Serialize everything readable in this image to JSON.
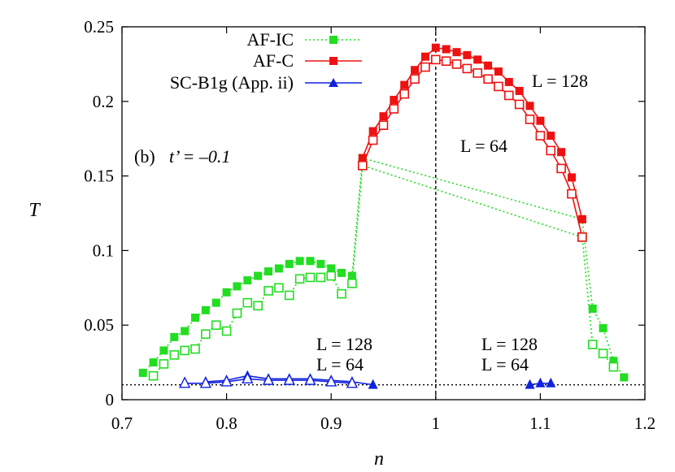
{
  "chart_data": {
    "type": "line",
    "xlabel": "n",
    "ylabel": "T",
    "xlim": [
      0.7,
      1.2
    ],
    "ylim": [
      0,
      0.25
    ],
    "xticks": [
      "0.7",
      "0.8",
      "0.9",
      "1",
      "1.1",
      "1.2"
    ],
    "yticks": [
      "0",
      "0.05",
      "0.1",
      "0.15",
      "0.2",
      "0.25"
    ],
    "panel_label": "(b)",
    "param_label": "t’ = –0.1",
    "size_labels": [
      "L = 128",
      "L = 64",
      "L = 128",
      "L = 64",
      "L = 128",
      "L = 64"
    ],
    "reference_lines": {
      "vertical_x": 1.0,
      "horizontal_y": 0.01
    },
    "legend": {
      "position": "top-left",
      "entries": [
        "AF-IC",
        "AF-C",
        "SC-B1g (App. ii)"
      ]
    },
    "colors": {
      "af_ic": "#22dd22",
      "af_c": "#ee1111",
      "sc_b1g": "#1122dd"
    },
    "series": [
      {
        "name": "AF-IC",
        "size": "L = 128",
        "marker": "filled-square",
        "line": "dotted",
        "color": "#22dd22",
        "x": [
          0.72,
          0.73,
          0.74,
          0.75,
          0.76,
          0.77,
          0.78,
          0.79,
          0.8,
          0.81,
          0.82,
          0.83,
          0.84,
          0.85,
          0.86,
          0.87,
          0.88,
          0.89,
          0.9,
          0.91,
          0.92,
          0.93,
          1.14,
          1.15,
          1.16,
          1.17,
          1.18
        ],
        "y": [
          0.018,
          0.025,
          0.033,
          0.042,
          0.046,
          0.055,
          0.06,
          0.065,
          0.072,
          0.076,
          0.08,
          0.083,
          0.086,
          0.088,
          0.091,
          0.093,
          0.093,
          0.091,
          0.088,
          0.085,
          0.083,
          0.162,
          0.121,
          0.061,
          0.048,
          0.026,
          0.015
        ]
      },
      {
        "name": "AF-IC",
        "size": "L = 64",
        "marker": "open-square",
        "line": "dotted",
        "color": "#22dd22",
        "x": [
          0.73,
          0.74,
          0.75,
          0.76,
          0.77,
          0.78,
          0.79,
          0.8,
          0.81,
          0.82,
          0.83,
          0.84,
          0.85,
          0.86,
          0.87,
          0.88,
          0.89,
          0.9,
          0.91,
          0.92,
          0.93,
          1.14,
          1.15,
          1.16,
          1.17
        ],
        "y": [
          0.016,
          0.024,
          0.03,
          0.033,
          0.034,
          0.044,
          0.05,
          0.046,
          0.058,
          0.065,
          0.063,
          0.073,
          0.075,
          0.07,
          0.081,
          0.082,
          0.082,
          0.083,
          0.071,
          0.078,
          0.157,
          0.109,
          0.037,
          0.031,
          0.022
        ]
      },
      {
        "name": "AF-C",
        "size": "L = 128",
        "marker": "filled-square",
        "line": "solid",
        "color": "#ee1111",
        "x": [
          0.93,
          0.94,
          0.95,
          0.96,
          0.97,
          0.98,
          0.99,
          1.0,
          1.01,
          1.02,
          1.03,
          1.04,
          1.05,
          1.06,
          1.07,
          1.08,
          1.09,
          1.1,
          1.11,
          1.12,
          1.13,
          1.14
        ],
        "y": [
          0.162,
          0.18,
          0.19,
          0.201,
          0.211,
          0.221,
          0.23,
          0.236,
          0.235,
          0.233,
          0.231,
          0.228,
          0.224,
          0.22,
          0.213,
          0.207,
          0.197,
          0.187,
          0.177,
          0.166,
          0.149,
          0.121
        ]
      },
      {
        "name": "AF-C",
        "size": "L = 64",
        "marker": "open-square",
        "line": "solid",
        "color": "#ee1111",
        "x": [
          0.93,
          0.94,
          0.95,
          0.96,
          0.97,
          0.98,
          0.99,
          1.0,
          1.01,
          1.02,
          1.03,
          1.04,
          1.05,
          1.06,
          1.07,
          1.08,
          1.09,
          1.1,
          1.11,
          1.12,
          1.13,
          1.14
        ],
        "y": [
          0.157,
          0.174,
          0.184,
          0.195,
          0.205,
          0.215,
          0.223,
          0.228,
          0.227,
          0.225,
          0.222,
          0.219,
          0.215,
          0.21,
          0.204,
          0.198,
          0.188,
          0.177,
          0.167,
          0.155,
          0.138,
          0.109
        ]
      },
      {
        "name": "SC-B1g (App. ii)",
        "size": "L = 128",
        "marker": "filled-triangle",
        "line": "solid",
        "color": "#1122dd",
        "x": [
          0.78,
          0.8,
          0.82,
          0.84,
          0.86,
          0.88,
          0.9,
          0.92,
          0.94
        ],
        "y": [
          0.012,
          0.013,
          0.016,
          0.014,
          0.014,
          0.014,
          0.013,
          0.012,
          0.01
        ]
      },
      {
        "name": "SC-B1g (App. ii)",
        "size": "L = 64",
        "marker": "open-triangle",
        "line": "solid",
        "color": "#1122dd",
        "x": [
          0.76,
          0.78,
          0.8,
          0.82,
          0.84,
          0.86,
          0.88,
          0.9,
          0.92
        ],
        "y": [
          0.011,
          0.011,
          0.012,
          0.014,
          0.013,
          0.013,
          0.013,
          0.012,
          0.011
        ]
      },
      {
        "name": "SC-B1g (App. ii)",
        "size": "L = 128",
        "marker": "filled-triangle",
        "line": "solid",
        "color": "#1122dd",
        "x": [
          1.09,
          1.1,
          1.11
        ],
        "y": [
          0.01,
          0.011,
          0.011
        ]
      }
    ]
  }
}
